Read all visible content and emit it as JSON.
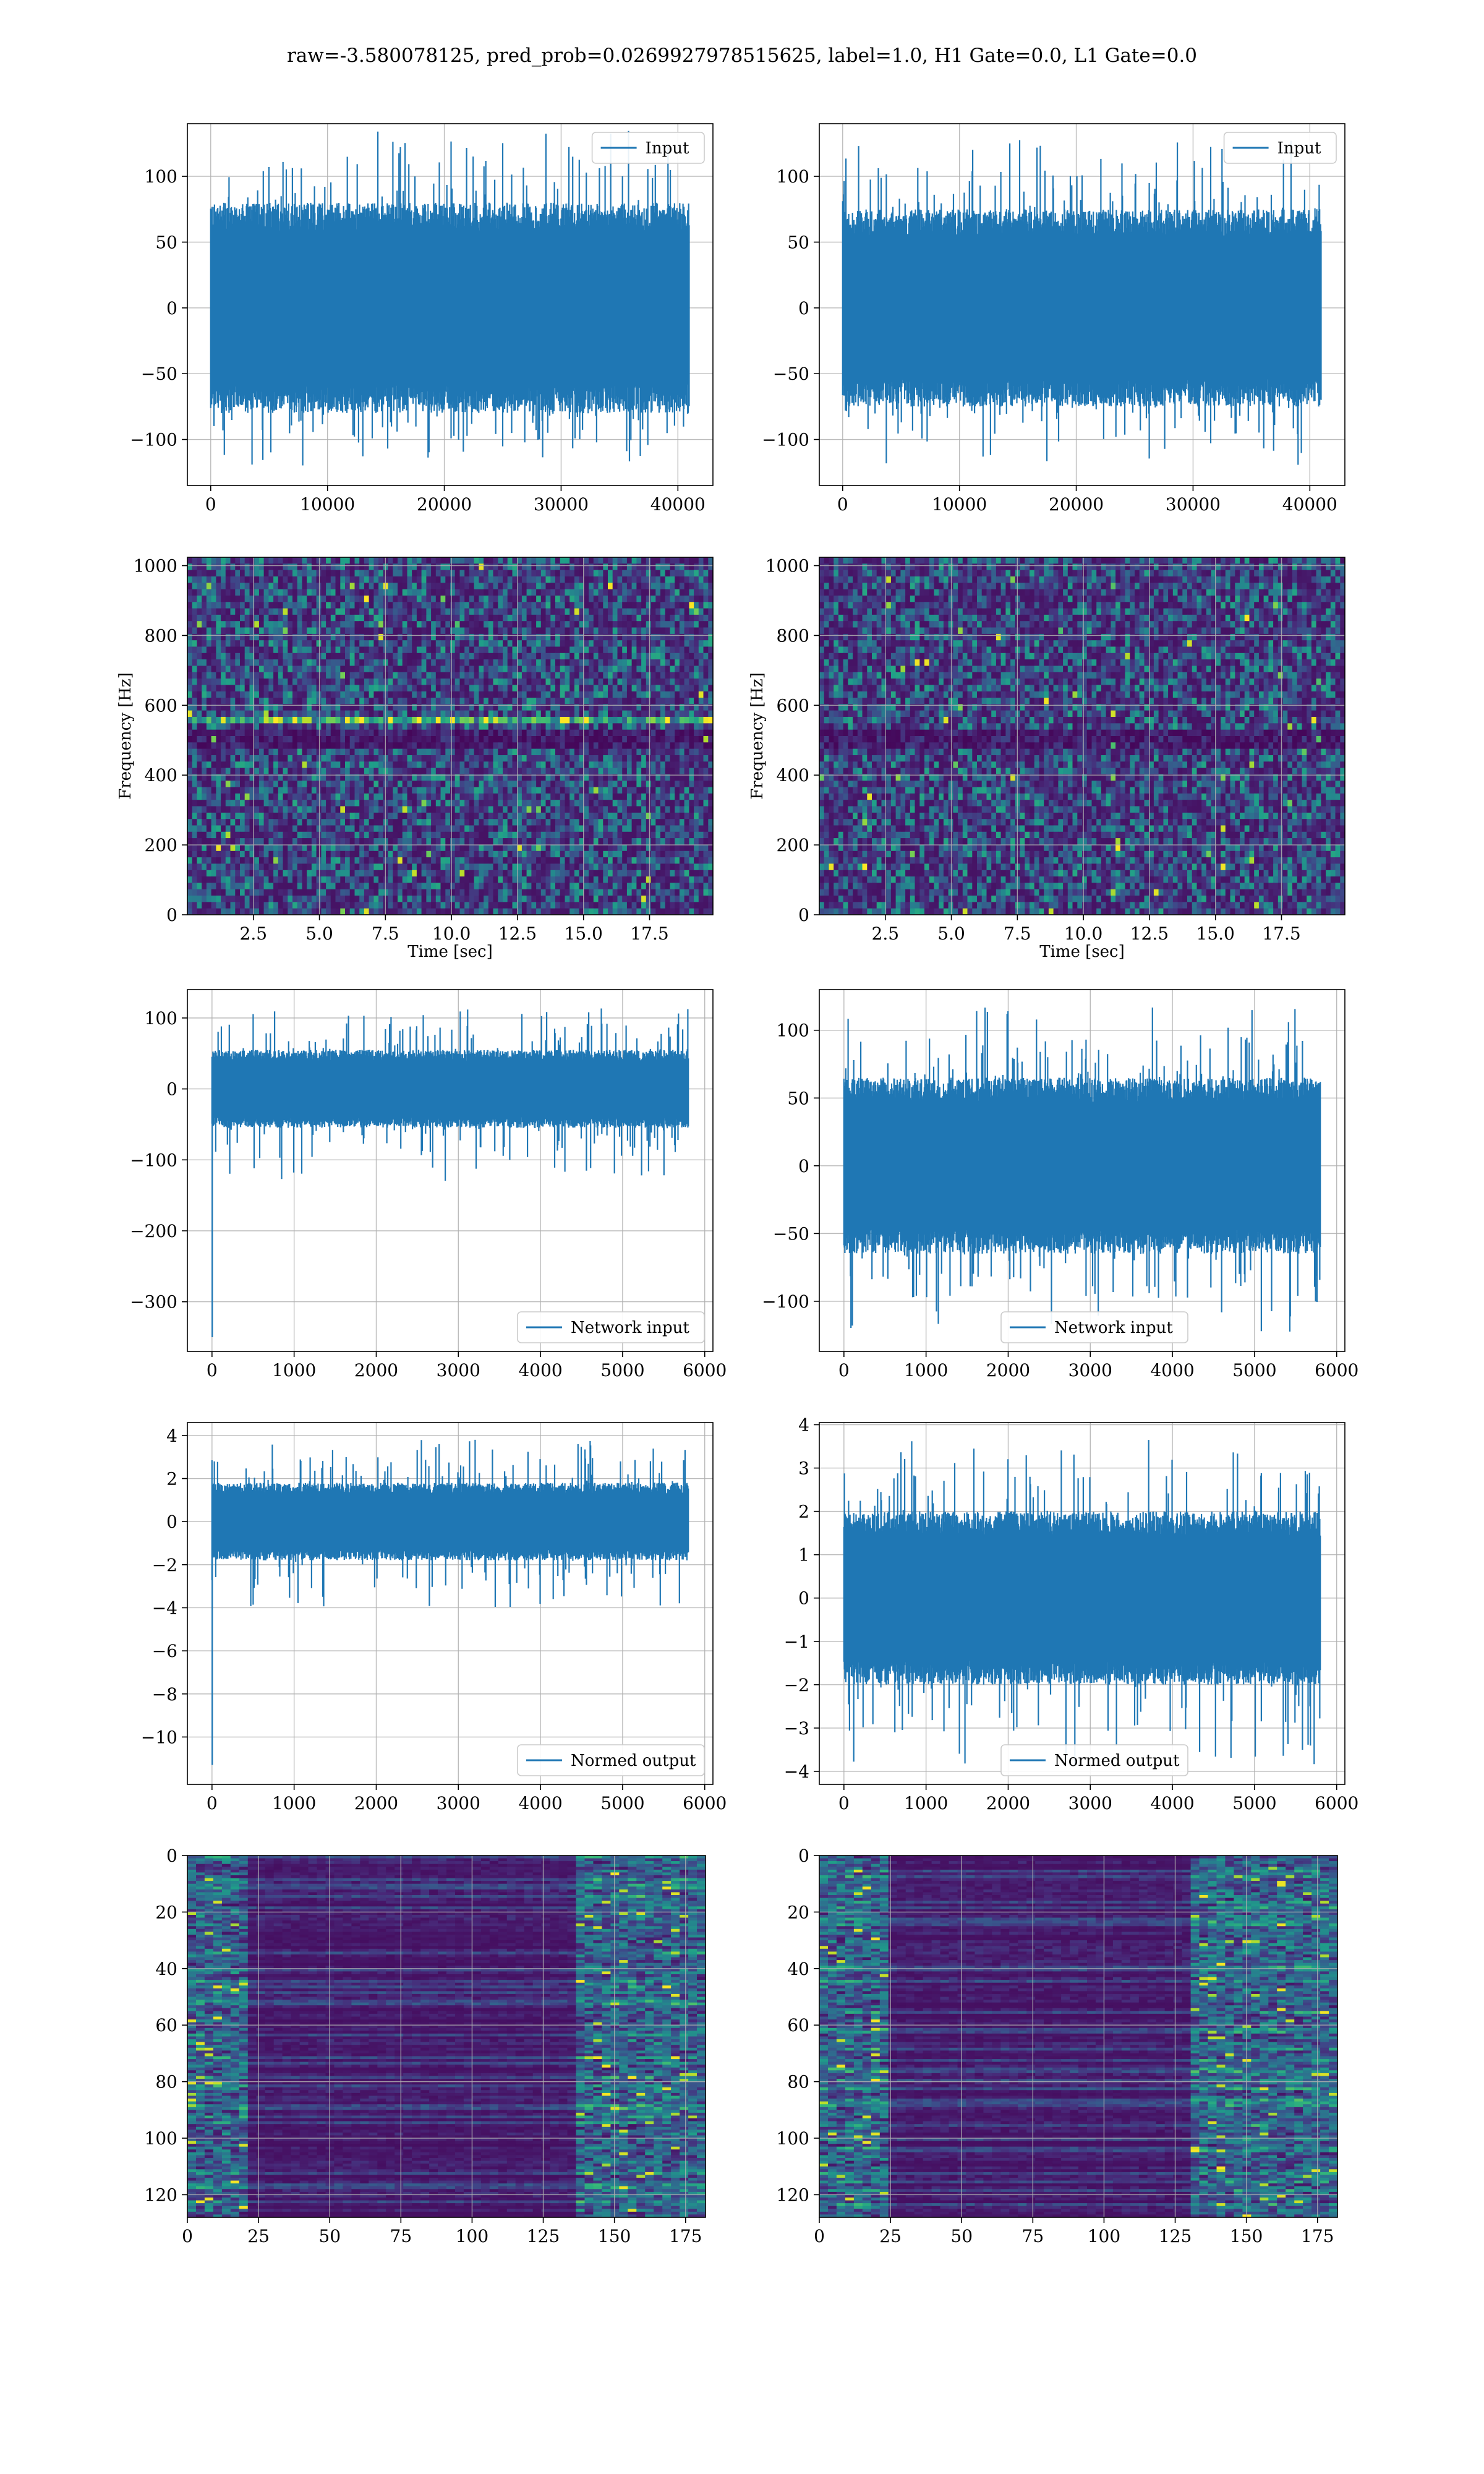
{
  "figure": {
    "title": "raw=-3.580078125, pred_prob=0.0269927978515625, label=1.0, H1 Gate=0.0, L1 Gate=0.0"
  },
  "colors": {
    "series": "#1f77b4",
    "grid": "#b0b0b0",
    "viridis": [
      "#440154",
      "#482878",
      "#3e4989",
      "#31688e",
      "#26828e",
      "#1f9e89",
      "#35b779",
      "#6ece58",
      "#b5de2b",
      "#fde725"
    ]
  },
  "chart_data": [
    {
      "id": "h1-input",
      "type": "line",
      "legend": "Input",
      "legend_position": "top-right",
      "grid": true,
      "xlim": [
        -2000,
        43000
      ],
      "ylim": [
        -135,
        140
      ],
      "xticks": [
        0,
        10000,
        20000,
        30000,
        40000
      ],
      "yticks": [
        -100,
        -50,
        0,
        50,
        100
      ],
      "signal": {
        "n_samples": 40960,
        "x_end": 40960,
        "band": [
          -80,
          80
        ],
        "peak_max": 135,
        "peak_min": -120,
        "spike_index": null,
        "spike_value": null
      }
    },
    {
      "id": "l1-input",
      "type": "line",
      "legend": "Input",
      "legend_position": "top-right",
      "grid": true,
      "xlim": [
        -2000,
        43000
      ],
      "ylim": [
        -135,
        140
      ],
      "xticks": [
        0,
        10000,
        20000,
        30000,
        40000
      ],
      "yticks": [
        -100,
        -50,
        0,
        50,
        100
      ],
      "signal": {
        "n_samples": 40960,
        "x_end": 40960,
        "band": [
          -75,
          75
        ],
        "peak_max": 128,
        "peak_min": -120,
        "spike_index": null,
        "spike_value": null
      }
    },
    {
      "id": "h1-spectrogram",
      "type": "heatmap",
      "xlabel": "Time [sec]",
      "ylabel": "Frequency [Hz]",
      "grid": true,
      "xlim": [
        0,
        19.9
      ],
      "ylim": [
        0,
        1024
      ],
      "xticks": [
        "2.5",
        "5.0",
        "7.5",
        "10.0",
        "12.5",
        "15.0",
        "17.5"
      ],
      "yticks": [
        0,
        200,
        400,
        600,
        800,
        1000
      ],
      "features": {
        "dark_band_hz": [
          480,
          530
        ],
        "bright_band_hz": [
          550,
          570
        ]
      }
    },
    {
      "id": "l1-spectrogram",
      "type": "heatmap",
      "xlabel": "Time [sec]",
      "ylabel": "Frequency [Hz]",
      "grid": true,
      "xlim": [
        0,
        19.9
      ],
      "ylim": [
        0,
        1024
      ],
      "xticks": [
        "2.5",
        "5.0",
        "7.5",
        "10.0",
        "12.5",
        "15.0",
        "17.5"
      ],
      "yticks": [
        0,
        200,
        400,
        600,
        800,
        1000
      ],
      "features": {
        "dark_band_hz": [
          480,
          530
        ],
        "bright_band_hz": null
      }
    },
    {
      "id": "h1-network-input",
      "type": "line",
      "legend": "Network input",
      "legend_position": "bottom-right",
      "grid": true,
      "xlim": [
        -300,
        6100
      ],
      "ylim": [
        -370,
        140
      ],
      "xticks": [
        0,
        1000,
        2000,
        3000,
        4000,
        5000,
        6000
      ],
      "yticks": [
        -300,
        -200,
        -100,
        0,
        100
      ],
      "signal": {
        "n_samples": 5800,
        "x_end": 5800,
        "band": [
          -55,
          55
        ],
        "peak_max": 118,
        "peak_min": -130,
        "spike_index": 3,
        "spike_value": -350
      }
    },
    {
      "id": "l1-network-input",
      "type": "line",
      "legend": "Network input",
      "legend_position": "bottom-center",
      "grid": true,
      "xlim": [
        -300,
        6100
      ],
      "ylim": [
        -137,
        130
      ],
      "xticks": [
        0,
        1000,
        2000,
        3000,
        4000,
        5000,
        6000
      ],
      "yticks": [
        -100,
        -50,
        0,
        50,
        100
      ],
      "signal": {
        "n_samples": 5800,
        "x_end": 5800,
        "band": [
          -65,
          65
        ],
        "peak_max": 118,
        "peak_min": -125,
        "spike_index": null,
        "spike_value": null
      }
    },
    {
      "id": "h1-normed-output",
      "type": "line",
      "legend": "Normed output",
      "legend_position": "bottom-right",
      "grid": true,
      "xlim": [
        -300,
        6100
      ],
      "ylim": [
        -12.2,
        4.6
      ],
      "xticks": [
        0,
        1000,
        2000,
        3000,
        4000,
        5000,
        6000
      ],
      "yticks": [
        -10,
        -8,
        -6,
        -4,
        -2,
        0,
        2,
        4
      ],
      "signal": {
        "n_samples": 5800,
        "x_end": 5800,
        "band": [
          -1.8,
          1.8
        ],
        "peak_max": 3.8,
        "peak_min": -4,
        "spike_index": 3,
        "spike_value": -11.3
      }
    },
    {
      "id": "l1-normed-output",
      "type": "line",
      "legend": "Normed output",
      "legend_position": "bottom-center",
      "grid": true,
      "xlim": [
        -300,
        6100
      ],
      "ylim": [
        -4.3,
        4.05
      ],
      "xticks": [
        0,
        1000,
        2000,
        3000,
        4000,
        5000,
        6000
      ],
      "yticks": [
        -4,
        -3,
        -2,
        -1,
        0,
        1,
        2,
        3,
        4
      ],
      "signal": {
        "n_samples": 5800,
        "x_end": 5800,
        "band": [
          -2,
          2
        ],
        "peak_max": 3.65,
        "peak_min": -3.85,
        "spike_index": null,
        "spike_value": null
      }
    },
    {
      "id": "h1-feature-map",
      "type": "heatmap",
      "grid": true,
      "xlim": [
        0,
        182
      ],
      "ylim": [
        128,
        0
      ],
      "xticks": [
        0,
        25,
        50,
        75,
        100,
        125,
        150,
        175
      ],
      "yticks": [
        0,
        20,
        40,
        60,
        80,
        100,
        120
      ],
      "features": {
        "active_x_ranges": [
          [
            0,
            20
          ],
          [
            135,
            182
          ]
        ]
      }
    },
    {
      "id": "l1-feature-map",
      "type": "heatmap",
      "grid": true,
      "xlim": [
        0,
        182
      ],
      "ylim": [
        128,
        0
      ],
      "xticks": [
        0,
        25,
        50,
        75,
        100,
        125,
        150,
        175
      ],
      "yticks": [
        0,
        20,
        40,
        60,
        80,
        100,
        120
      ],
      "features": {
        "active_x_ranges": [
          [
            0,
            25
          ],
          [
            130,
            182
          ]
        ]
      }
    }
  ]
}
